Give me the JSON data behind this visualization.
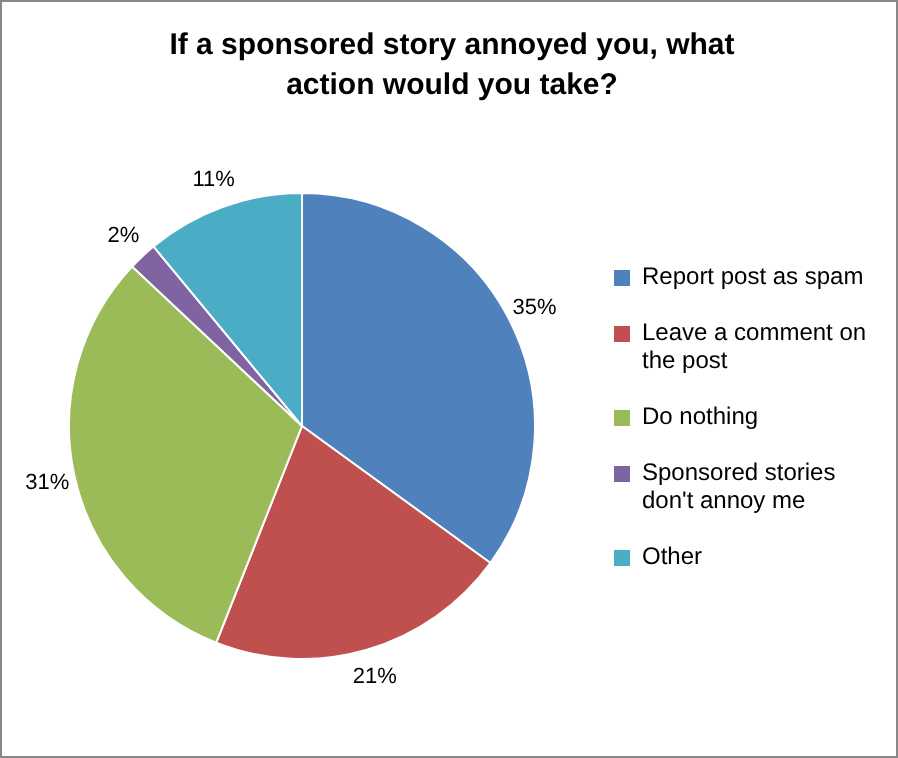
{
  "chart_data": {
    "type": "pie",
    "title": "If a sponsored story annoyed you, what action would you take?",
    "categories": [
      "Report post as spam",
      "Leave a comment on the post",
      "Do nothing",
      "Sponsored stories don't annoy me",
      "Other"
    ],
    "values": [
      35,
      21,
      31,
      2,
      11
    ],
    "value_labels": [
      "35%",
      "21%",
      "31%",
      "2%",
      "11%"
    ],
    "colors": [
      "#4f81bd",
      "#c0504d",
      "#9bbb59",
      "#8064a2",
      "#4bacc6"
    ],
    "legend": "right"
  }
}
